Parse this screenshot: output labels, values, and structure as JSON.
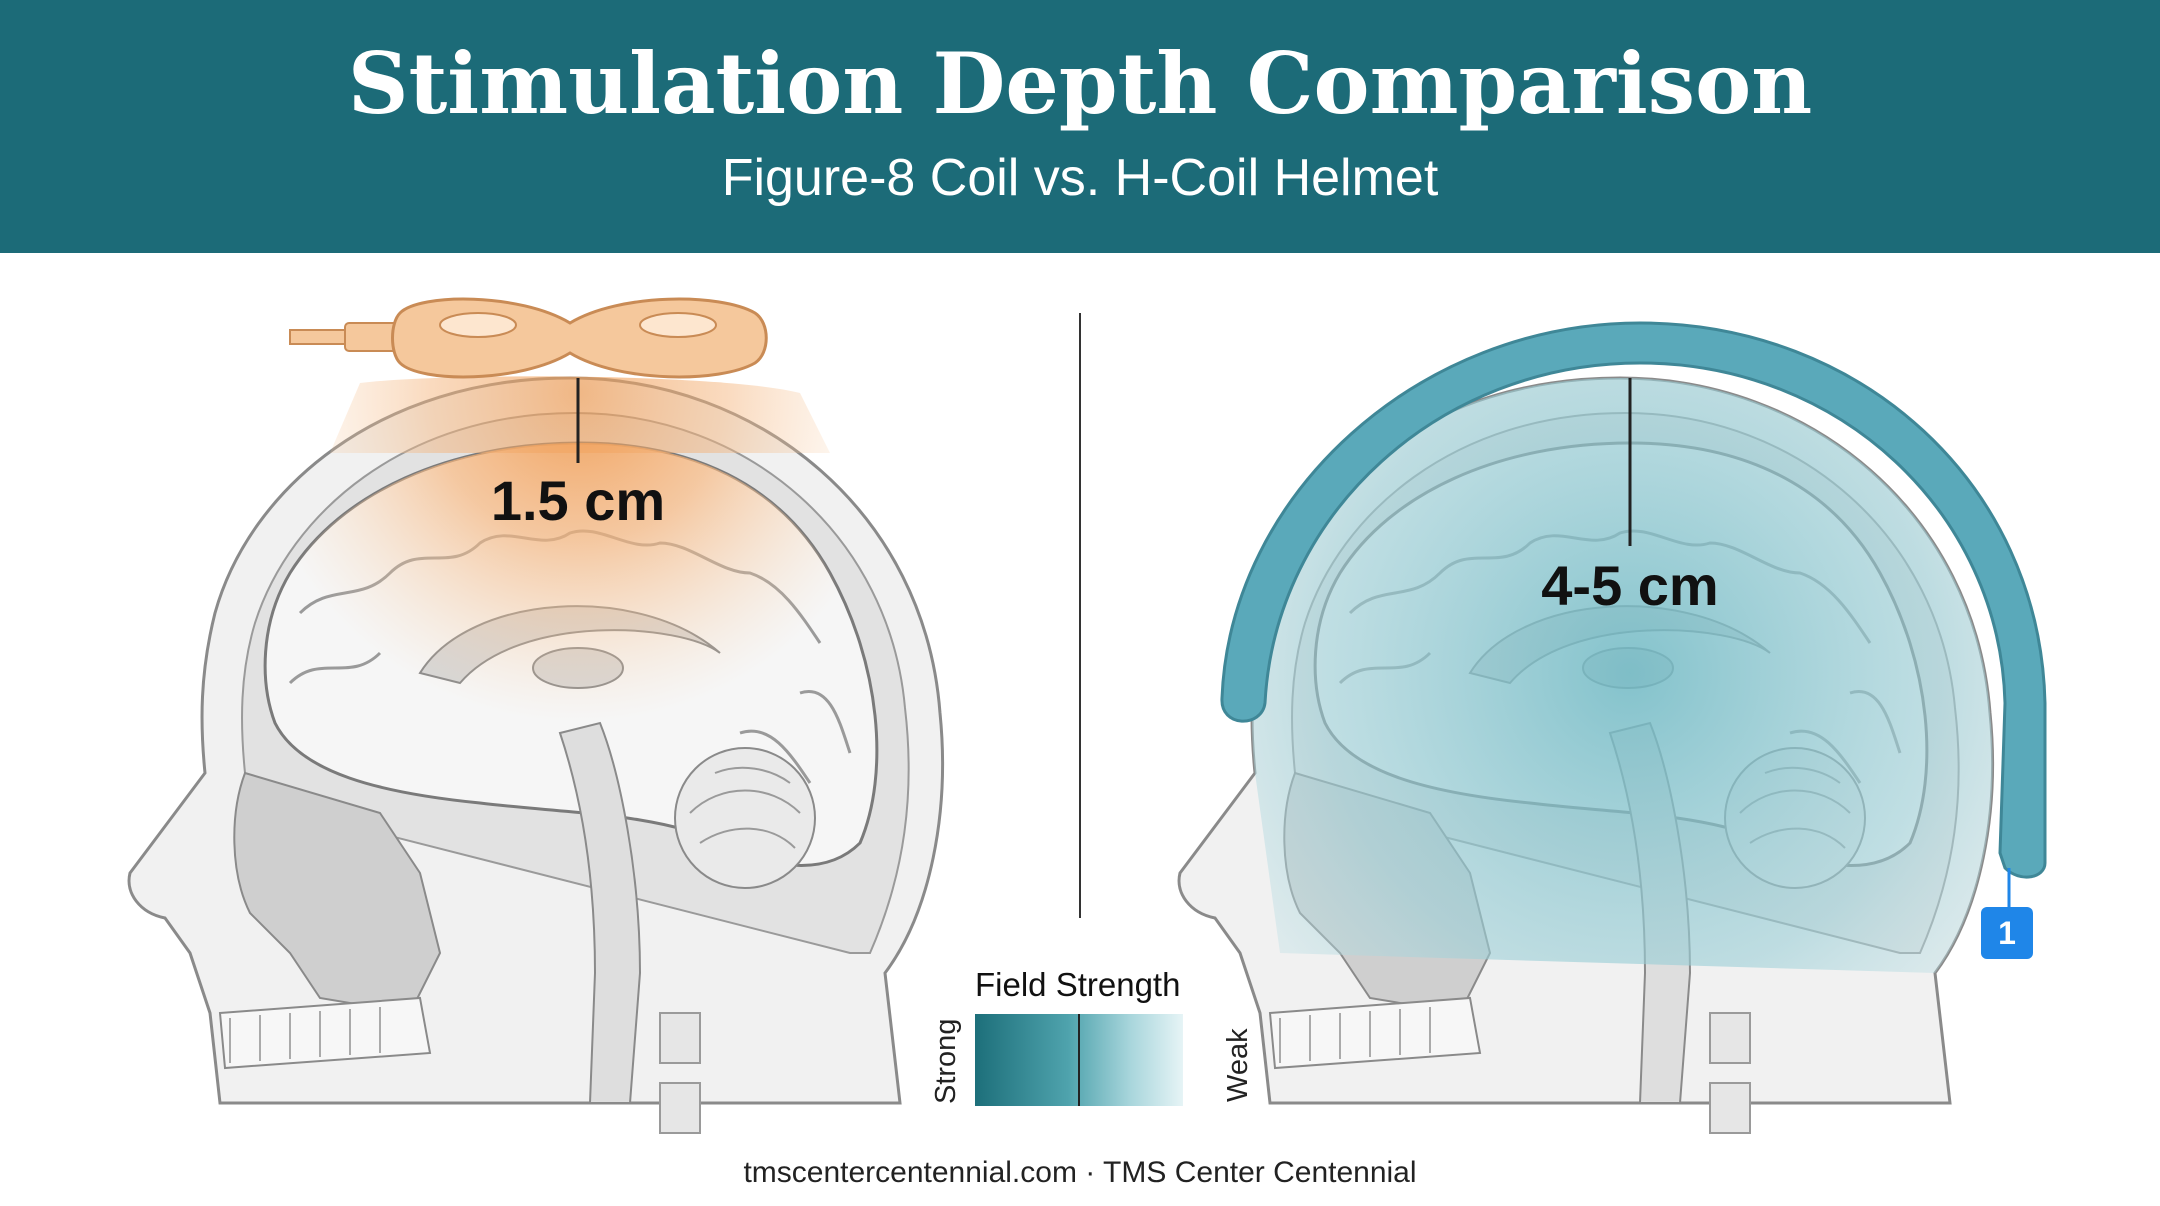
{
  "header": {
    "title": "Stimulation Depth Comparison",
    "subtitle": "Figure-8 Coil vs. H-Coil Helmet"
  },
  "panels": {
    "left": {
      "depth_label": "1.5 cm",
      "coil_color": "#f5c89c",
      "field_color": "#f0a060"
    },
    "right": {
      "depth_label": "4-5 cm",
      "coil_color": "#5aa9ba",
      "field_color": "#7cc3cf"
    }
  },
  "legend": {
    "title": "Field Strength",
    "strong_label": "Strong",
    "weak_label": "Weak"
  },
  "callout": {
    "number": "1"
  },
  "footer": {
    "text": "tmscentercentennial.com · TMS Center Centennial"
  },
  "colors": {
    "header_bg": "#1c6b78",
    "badge": "#1f86e8"
  }
}
